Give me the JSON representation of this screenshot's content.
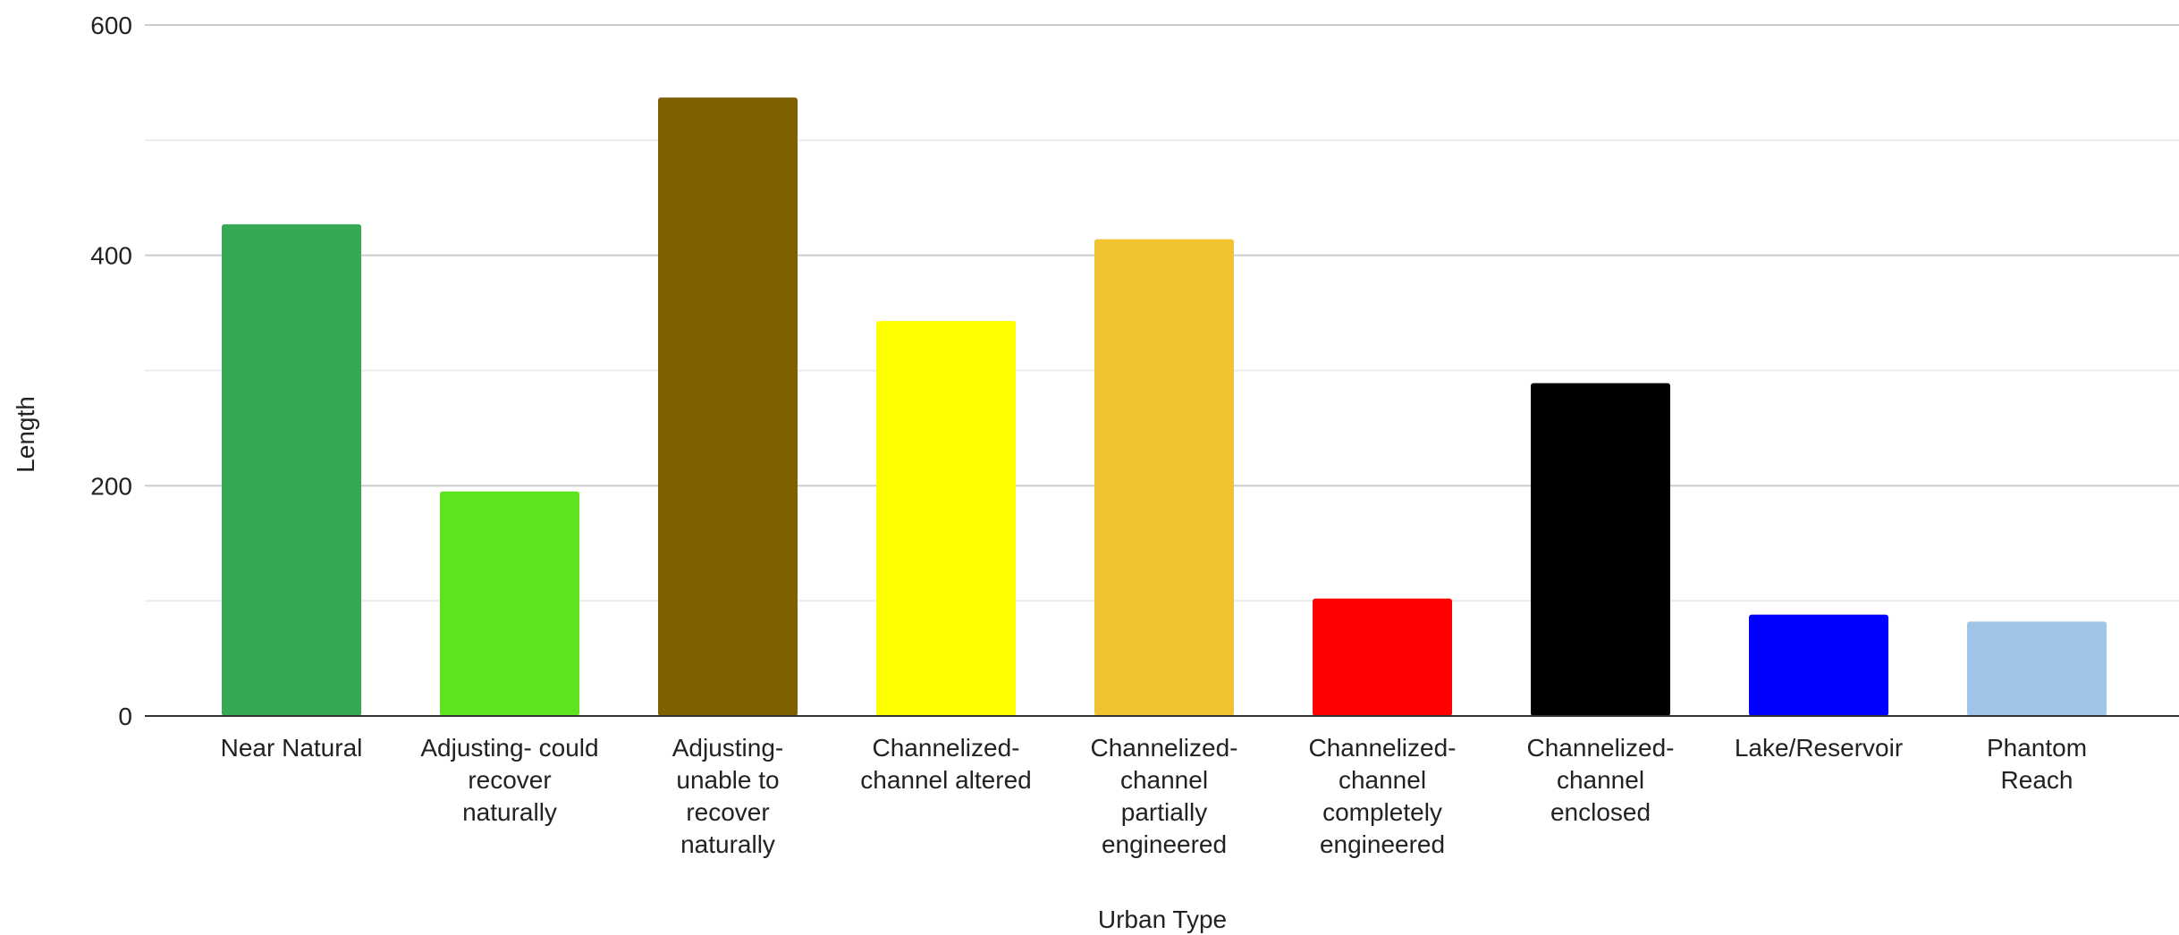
{
  "chart_data": {
    "type": "bar",
    "title": "",
    "xlabel": "Urban Type",
    "ylabel": "Length",
    "ylim": [
      0,
      600
    ],
    "yticks": [
      0,
      200,
      400,
      600
    ],
    "minor_gridlines": [
      100,
      300,
      500
    ],
    "grid": true,
    "legend": "none",
    "categories": [
      [
        "Near Natural"
      ],
      [
        "Adjusting- could",
        "recover",
        "naturally"
      ],
      [
        "Adjusting-",
        "unable to",
        "recover",
        "naturally"
      ],
      [
        "Channelized-",
        "channel altered"
      ],
      [
        "Channelized-",
        "channel",
        "partially",
        "engineered"
      ],
      [
        "Channelized-",
        "channel",
        "completely",
        "engineered"
      ],
      [
        "Channelized-",
        "channel",
        "enclosed"
      ],
      [
        "Lake/Reservoir"
      ],
      [
        "Phantom",
        "Reach"
      ]
    ],
    "values": [
      427,
      195,
      537,
      343,
      414,
      102,
      289,
      88,
      82
    ],
    "colors": [
      "#34a853",
      "#5ce51f",
      "#7f6000",
      "#ffff00",
      "#f1c232",
      "#ff0000",
      "#000000",
      "#0000ff",
      "#9fc5e8"
    ]
  }
}
